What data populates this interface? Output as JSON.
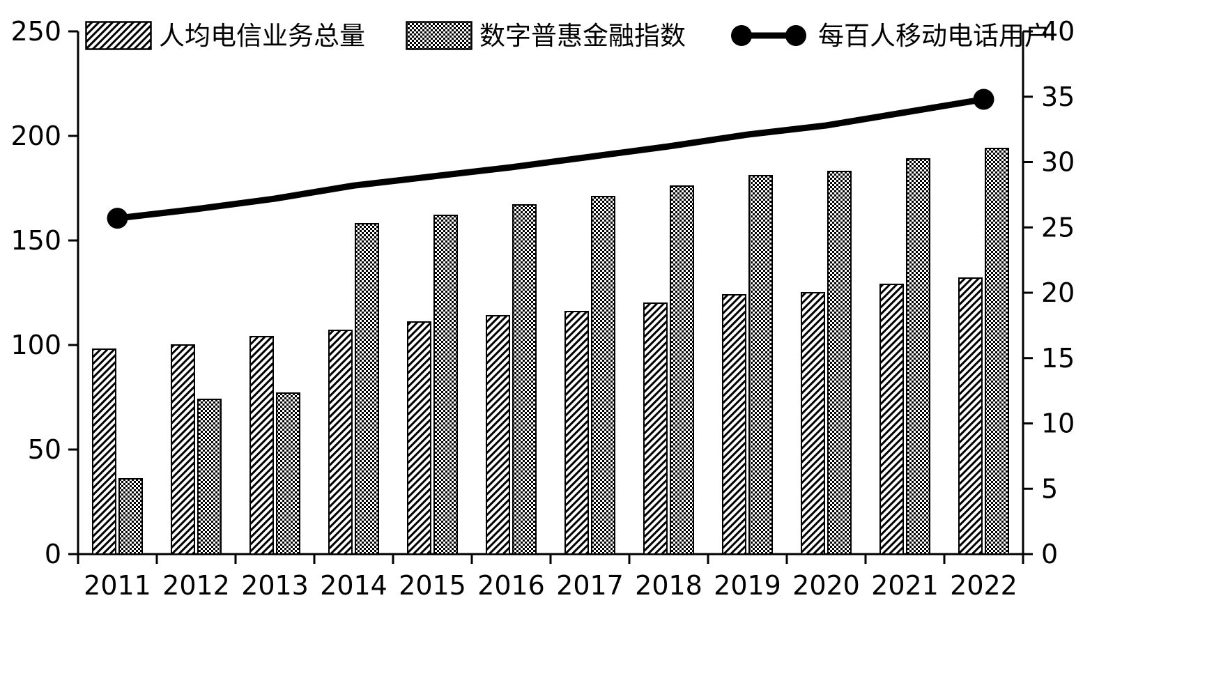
{
  "chart_data": {
    "type": "bar",
    "subtype": "dual-axis bar + line combo",
    "categories": [
      "2011",
      "2012",
      "2013",
      "2014",
      "2015",
      "2016",
      "2017",
      "2018",
      "2019",
      "2020",
      "2021",
      "2022"
    ],
    "series": [
      {
        "name": "人均电信业务总量",
        "type": "bar",
        "axis": "left",
        "pattern": "diagonal-hatch",
        "values": [
          98,
          100,
          104,
          107,
          111,
          114,
          116,
          120,
          124,
          125,
          129,
          132
        ]
      },
      {
        "name": "数字普惠金融指数",
        "type": "bar",
        "axis": "left",
        "pattern": "cross-check",
        "values": [
          36,
          74,
          77,
          158,
          162,
          167,
          171,
          176,
          181,
          183,
          189,
          194
        ]
      },
      {
        "name": "每百人移动电话用户",
        "type": "line",
        "axis": "right",
        "marker": "circle-endpoints",
        "values": [
          25.7,
          26.4,
          27.2,
          28.2,
          28.9,
          29.6,
          30.4,
          31.2,
          32.1,
          32.8,
          33.8,
          34.8
        ]
      }
    ],
    "title": "",
    "xlabel": "",
    "ylabel_left": "",
    "ylabel_right": "",
    "left_axis": {
      "min": 0,
      "max": 250,
      "ticks": [
        0,
        50,
        100,
        150,
        200,
        250
      ]
    },
    "right_axis": {
      "min": 0,
      "max": 40,
      "ticks": [
        0,
        5,
        10,
        15,
        20,
        25,
        30,
        35,
        40
      ]
    },
    "grid": "off",
    "legend_position": "top-inside",
    "colors": {
      "foreground": "#000000",
      "background": "#ffffff",
      "bar_stroke": "#000000",
      "line_stroke": "#000000"
    }
  },
  "legend": {
    "items": [
      {
        "label": "人均电信业务总量",
        "swatch": "diagonal-hatch-box"
      },
      {
        "label": "数字普惠金融指数",
        "swatch": "cross-check-box"
      },
      {
        "label": "每百人移动电话用户",
        "swatch": "line-with-dots"
      }
    ]
  }
}
